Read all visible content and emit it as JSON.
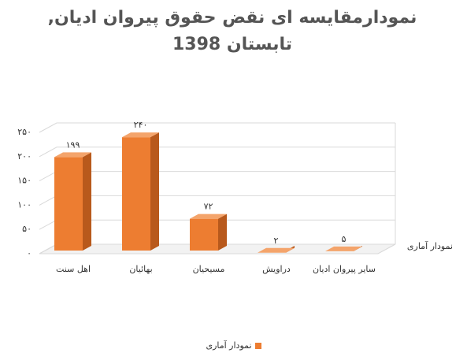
{
  "chart_data": {
    "type": "bar3d",
    "title": "نمودارمقایسه ای نقض حقوق پیروان ادیان, تابستان 1398",
    "categories": [
      "اهل سنت",
      "بهائیان",
      "مسیحیان",
      "دراویش",
      "سایر پیروان ادیان"
    ],
    "series": [
      {
        "name": "نمودار آماری",
        "color": "#ed7d31",
        "values": [
          199,
          240,
          72,
          2,
          5
        ],
        "value_labels": [
          "۱۹۹",
          "۲۴۰",
          "۷۲",
          "۲",
          "۵"
        ]
      }
    ],
    "ylim": [
      0,
      250
    ],
    "yticks": [
      {
        "value": 0,
        "label": "۰"
      },
      {
        "value": 50,
        "label": "۵۰"
      },
      {
        "value": 100,
        "label": "۱۰۰"
      },
      {
        "value": 150,
        "label": "۱۵۰"
      },
      {
        "value": 200,
        "label": "۲۰۰"
      },
      {
        "value": 250,
        "label": "۲۵۰"
      }
    ],
    "grid": true,
    "legend": "bottom"
  }
}
